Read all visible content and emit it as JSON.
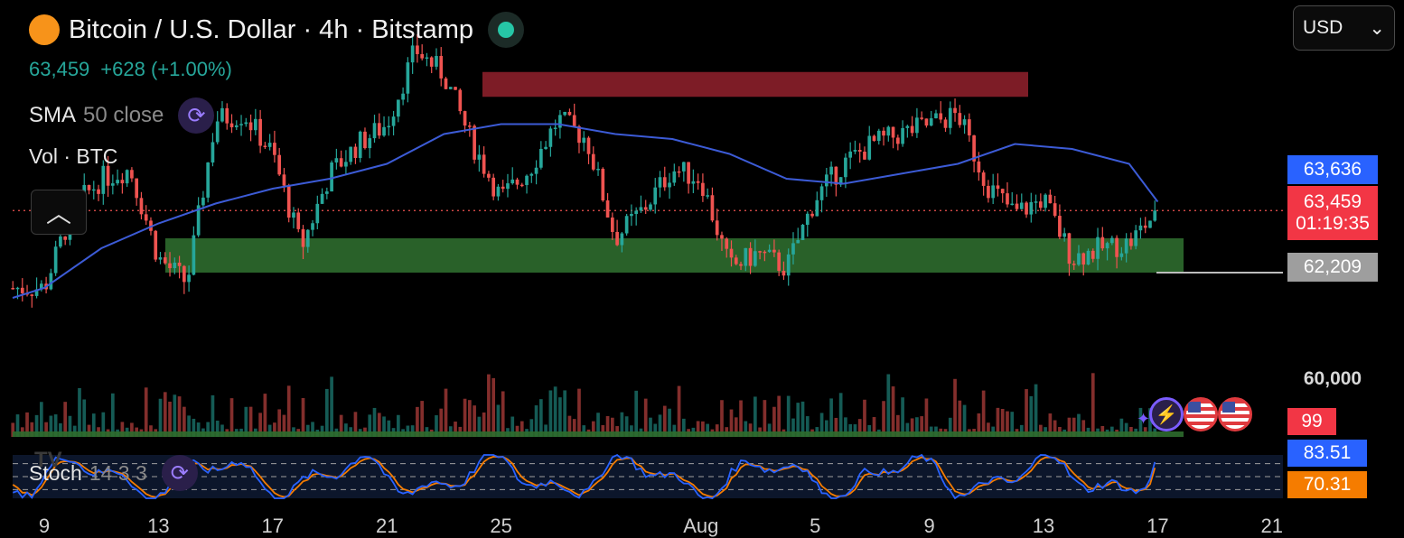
{
  "header": {
    "logo_symbol": "₿",
    "title": "Bitcoin / U.S. Dollar · 4h · Bitstamp",
    "status_color": "#26c6a6",
    "price": "63,459",
    "change": "+628 (+1.00%)",
    "price_color": "#26a69a"
  },
  "indicators": {
    "sma_label": "SMA",
    "sma_params": "50 close",
    "vol_label": "Vol · BTC",
    "stoch_label": "Stoch",
    "stoch_params": "14 3 3"
  },
  "controls": {
    "currency": "USD",
    "currency_chevron": "⌄",
    "collapse_symbol": "︿",
    "refresh_symbol": "⟳",
    "bolt_symbol": "⚡",
    "sparkle_symbol": "✦",
    "tv_logo": "TV"
  },
  "price_tags": {
    "sma_value": "63,636",
    "last_price": "63,459",
    "countdown": "01:19:35",
    "support_line": "62,209",
    "volume_tick": "60,000",
    "volume_value": "99",
    "stoch_k": "83.51",
    "stoch_d": "70.31"
  },
  "colors": {
    "up": "#26a69a",
    "down": "#ef5350",
    "sma": "#3c5bd6",
    "resistance_zone": "#8b1f2a",
    "support_zone": "#2e6b2e",
    "stoch_k": "#2962ff",
    "stoch_d": "#f57c00",
    "sma_tag": "#2962ff",
    "price_tag": "#f23645",
    "support_tag": "#9e9e9e",
    "volume_tag": "#f23645",
    "stoch_k_tag": "#2962ff",
    "stoch_d_tag": "#f57c00"
  },
  "chart_data": {
    "type": "candlestick",
    "symbol": "BTC/USD",
    "interval": "4h",
    "exchange": "Bitstamp",
    "x_ticks": [
      "9",
      "13",
      "17",
      "21",
      "25",
      "Aug",
      "5",
      "9",
      "13",
      "17",
      "21"
    ],
    "y_ticks": [
      "60,000"
    ],
    "price_waypoints": {
      "dates": [
        "Jul 9",
        "Jul 10",
        "Jul 11",
        "Jul 12",
        "Jul 13",
        "Jul 14",
        "Jul 15",
        "Jul 16",
        "Jul 17",
        "Jul 18",
        "Jul 19",
        "Jul 20",
        "Jul 21",
        "Jul 22",
        "Jul 23",
        "Jul 24",
        "Jul 25",
        "Jul 26",
        "Jul 27",
        "Jul 28",
        "Jul 29",
        "Jul 30",
        "Jul 31",
        "Aug 1",
        "Aug 2",
        "Aug 3",
        "Aug 4",
        "Aug 5",
        "Aug 6",
        "Aug 7",
        "Aug 8",
        "Aug 9",
        "Aug 10",
        "Aug 11",
        "Aug 12",
        "Aug 13",
        "Aug 14",
        "Aug 15",
        "Aug 16",
        "Aug 17"
      ],
      "close": [
        61900,
        63500,
        64100,
        64300,
        62500,
        62000,
        65300,
        65400,
        64600,
        62700,
        64200,
        64800,
        65200,
        66700,
        66200,
        64800,
        63700,
        64300,
        65300,
        64900,
        62900,
        63500,
        64300,
        64100,
        62300,
        62600,
        62300,
        63700,
        64400,
        64800,
        65000,
        65200,
        65400,
        64000,
        63400,
        63700,
        62500,
        62700,
        62800,
        63459
      ]
    },
    "sma50": {
      "dates": [
        "Jul 9",
        "Jul 11",
        "Jul 13",
        "Jul 15",
        "Jul 17",
        "Jul 19",
        "Jul 21",
        "Jul 23",
        "Jul 25",
        "Jul 27",
        "Jul 29",
        "Jul 31",
        "Aug 2",
        "Aug 4",
        "Aug 6",
        "Aug 8",
        "Aug 10",
        "Aug 12",
        "Aug 14",
        "Aug 16",
        "Aug 17"
      ],
      "values": [
        61900,
        62700,
        63200,
        63600,
        63900,
        64100,
        64400,
        65000,
        65200,
        65200,
        65000,
        64900,
        64600,
        64100,
        64000,
        64200,
        64400,
        64800,
        64700,
        64400,
        63636
      ]
    },
    "zones": [
      {
        "name": "resistance",
        "from": "Jul 24",
        "to": "Aug 12",
        "low": 65750,
        "high": 66250
      },
      {
        "name": "support",
        "from": "Jul 13",
        "to": "Aug 17",
        "low": 62209,
        "high": 62900
      }
    ],
    "last_price": 63459,
    "support_line": 62209,
    "volume": {
      "last": 99
    },
    "stochastic": {
      "period": [
        14,
        3,
        3
      ],
      "k": 83.51,
      "d": 70.31,
      "levels": [
        20,
        50,
        80
      ]
    }
  }
}
